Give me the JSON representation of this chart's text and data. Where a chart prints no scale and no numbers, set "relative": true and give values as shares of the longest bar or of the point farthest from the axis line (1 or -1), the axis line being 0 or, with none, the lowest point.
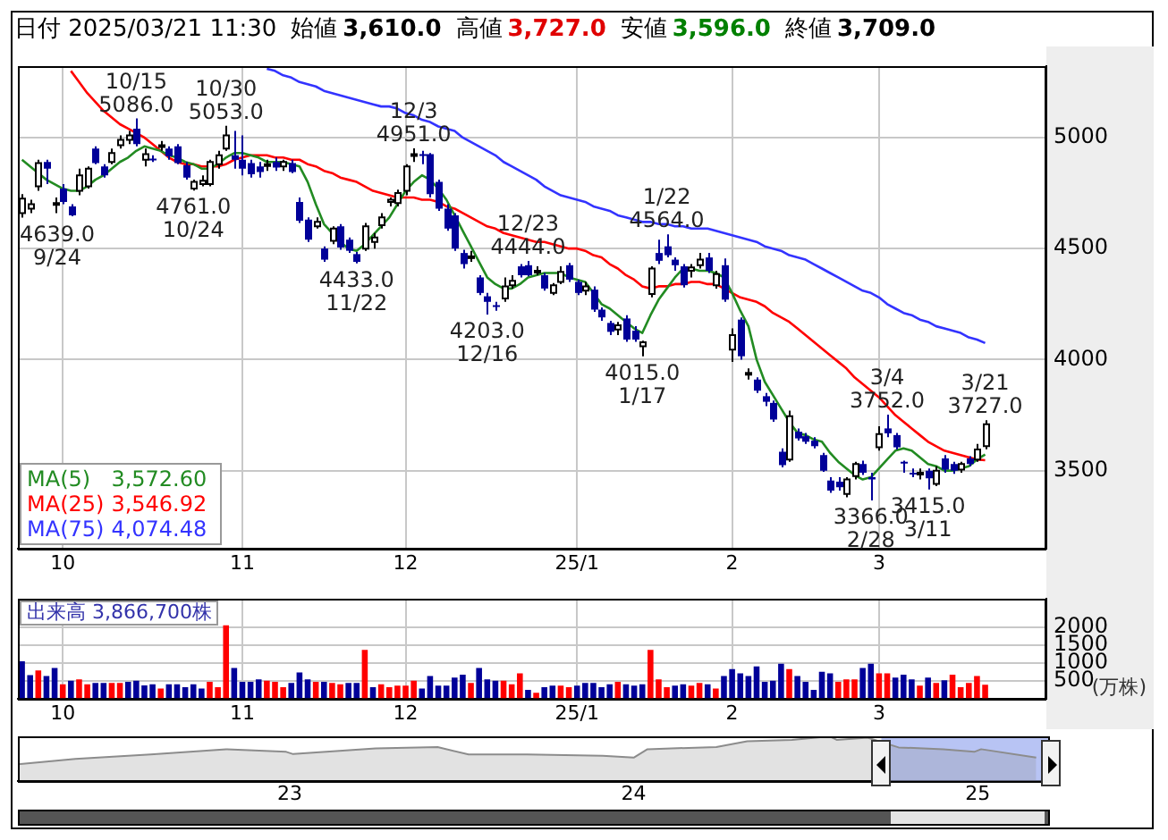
{
  "chart_data": [
    {
      "type": "candlestick",
      "title": "日付 2025/03/21 11:30",
      "annotations": [
        "始値 3,610.0",
        "高値 3,727.0",
        "安値 3,596.0",
        "終値 3,709.0",
        {
          "text": "4639.0\n9/24",
          "y": 4639
        },
        {
          "text": "10/15\n5086.0",
          "y": 5086
        },
        {
          "text": "4761.0\n10/24",
          "y": 4761
        },
        {
          "text": "10/30\n5053.0",
          "y": 5053
        },
        {
          "text": "4433.0\n11/22",
          "y": 4433
        },
        {
          "text": "12/3\n4951.0",
          "y": 4951
        },
        {
          "text": "4203.0\n12/16",
          "y": 4203
        },
        {
          "text": "12/23\n4444.0",
          "y": 4444
        },
        {
          "text": "4015.0\n1/17",
          "y": 4015
        },
        {
          "text": "1/22\n4564.0",
          "y": 4564
        },
        {
          "text": "3366.0\n2/28",
          "y": 3366
        },
        {
          "text": "3/4\n3752.0",
          "y": 3752
        },
        {
          "text": "3415.0\n3/11",
          "y": 3415
        },
        {
          "text": "3/21\n3727.0",
          "y": 3727
        }
      ],
      "categories": [
        null,
        null,
        null,
        null,
        null,
        "10",
        null,
        null,
        null,
        null,
        null,
        null,
        null,
        null,
        null,
        null,
        null,
        null,
        null,
        null,
        null,
        null,
        null,
        null,
        null,
        null,
        null,
        "11",
        null,
        null,
        null,
        null,
        null,
        null,
        null,
        null,
        null,
        null,
        null,
        null,
        null,
        null,
        null,
        null,
        null,
        null,
        null,
        "12",
        null,
        null,
        null,
        null,
        null,
        null,
        null,
        null,
        null,
        null,
        null,
        null,
        null,
        null,
        null,
        null,
        null,
        null,
        null,
        null,
        "25/1",
        null,
        null,
        null,
        null,
        null,
        null,
        null,
        null,
        null,
        null,
        null,
        null,
        null,
        null,
        null,
        null,
        null,
        null,
        "2",
        null,
        null,
        null,
        null,
        null,
        null,
        null,
        null,
        null,
        null,
        null,
        null,
        null,
        null,
        null,
        null,
        null,
        "3",
        null,
        null,
        null,
        null,
        null,
        null,
        null,
        null,
        null,
        null,
        null,
        null,
        null,
        null,
        null,
        null,
        null,
        null,
        null,
        null
      ],
      "ohlc": [
        [
          4660,
          4745,
          4639,
          4725
        ],
        [
          4680,
          4720,
          4660,
          4700
        ],
        [
          4780,
          4900,
          4760,
          4885
        ],
        [
          4890,
          4900,
          4790,
          4860
        ],
        [
          4700,
          4730,
          4660,
          4705
        ],
        [
          4770,
          4790,
          4700,
          4710
        ],
        [
          4690,
          4700,
          4645,
          4650
        ],
        [
          4760,
          4860,
          4740,
          4830
        ],
        [
          4780,
          4870,
          4770,
          4860
        ],
        [
          4950,
          4960,
          4880,
          4885
        ],
        [
          4870,
          4880,
          4820,
          4830
        ],
        [
          4890,
          4950,
          4880,
          4930
        ],
        [
          4965,
          5010,
          4950,
          4990
        ],
        [
          4990,
          5030,
          4970,
          5010
        ],
        [
          5040,
          5086,
          4960,
          4970
        ],
        [
          4900,
          4950,
          4870,
          4925
        ],
        [
          4905,
          4920,
          4890,
          4900
        ],
        [
          4960,
          4985,
          4940,
          4965
        ],
        [
          4950,
          4960,
          4900,
          4915
        ],
        [
          4960,
          4970,
          4880,
          4885
        ],
        [
          4875,
          4890,
          4810,
          4820
        ],
        [
          4770,
          4810,
          4761,
          4800
        ],
        [
          4790,
          4830,
          4780,
          4805
        ],
        [
          4790,
          4900,
          4780,
          4890
        ],
        [
          4880,
          4940,
          4860,
          4920
        ],
        [
          4950,
          5053,
          4940,
          5010
        ],
        [
          4920,
          5030,
          4860,
          4900
        ],
        [
          4900,
          5010,
          4830,
          4860
        ],
        [
          4885,
          4900,
          4820,
          4835
        ],
        [
          4870,
          4890,
          4820,
          4845
        ],
        [
          4875,
          4900,
          4850,
          4880
        ],
        [
          4890,
          4910,
          4850,
          4865
        ],
        [
          4870,
          4900,
          4850,
          4890
        ],
        [
          4885,
          4900,
          4840,
          4845
        ],
        [
          4710,
          4730,
          4615,
          4625
        ],
        [
          4630,
          4640,
          4530,
          4540
        ],
        [
          4600,
          4640,
          4590,
          4620
        ],
        [
          4500,
          4510,
          4440,
          4450
        ],
        [
          4535,
          4600,
          4520,
          4590
        ],
        [
          4600,
          4610,
          4495,
          4505
        ],
        [
          4540,
          4550,
          4480,
          4490
        ],
        [
          4475,
          4485,
          4433,
          4440
        ],
        [
          4500,
          4615,
          4490,
          4600
        ],
        [
          4530,
          4570,
          4500,
          4550
        ],
        [
          4605,
          4660,
          4590,
          4640
        ],
        [
          4710,
          4730,
          4690,
          4720
        ],
        [
          4705,
          4765,
          4690,
          4750
        ],
        [
          4760,
          4880,
          4740,
          4870
        ],
        [
          4920,
          4951,
          4890,
          4925
        ],
        [
          4925,
          4940,
          4880,
          4920
        ],
        [
          4925,
          4930,
          4730,
          4745
        ],
        [
          4800,
          4810,
          4670,
          4680
        ],
        [
          4680,
          4700,
          4580,
          4590
        ],
        [
          4650,
          4660,
          4490,
          4500
        ],
        [
          4480,
          4495,
          4410,
          4430
        ],
        [
          4460,
          4490,
          4440,
          4465
        ],
        [
          4370,
          4380,
          4290,
          4300
        ],
        [
          4285,
          4300,
          4203,
          4260
        ],
        [
          4245,
          4260,
          4220,
          4240
        ],
        [
          4275,
          4370,
          4260,
          4330
        ],
        [
          4335,
          4380,
          4320,
          4355
        ],
        [
          4420,
          4430,
          4370,
          4380
        ],
        [
          4425,
          4444,
          4375,
          4380
        ],
        [
          4395,
          4420,
          4380,
          4400
        ],
        [
          4380,
          4390,
          4310,
          4320
        ],
        [
          4300,
          4345,
          4290,
          4335
        ],
        [
          4350,
          4420,
          4340,
          4395
        ],
        [
          4425,
          4435,
          4350,
          4360
        ],
        [
          4350,
          4360,
          4290,
          4300
        ],
        [
          4310,
          4350,
          4290,
          4330
        ],
        [
          4315,
          4330,
          4215,
          4225
        ],
        [
          4225,
          4235,
          4175,
          4190
        ],
        [
          4165,
          4175,
          4110,
          4125
        ],
        [
          4135,
          4170,
          4110,
          4155
        ],
        [
          4185,
          4200,
          4080,
          4090
        ],
        [
          4130,
          4150,
          4080,
          4090
        ],
        [
          4060,
          4085,
          4015,
          4078
        ],
        [
          4295,
          4420,
          4280,
          4410
        ],
        [
          4480,
          4540,
          4430,
          4445
        ],
        [
          4510,
          4564,
          4460,
          4470
        ],
        [
          4450,
          4460,
          4400,
          4425
        ],
        [
          4420,
          4430,
          4325,
          4335
        ],
        [
          4400,
          4430,
          4370,
          4415
        ],
        [
          4425,
          4480,
          4410,
          4450
        ],
        [
          4460,
          4480,
          4390,
          4400
        ],
        [
          4335,
          4400,
          4320,
          4385
        ],
        [
          4425,
          4455,
          4260,
          4270
        ],
        [
          4045,
          4140,
          3990,
          4110
        ],
        [
          4180,
          4190,
          4000,
          4015
        ],
        [
          3935,
          3960,
          3910,
          3940
        ],
        [
          3910,
          3920,
          3850,
          3860
        ],
        [
          3835,
          3850,
          3790,
          3810
        ],
        [
          3805,
          3815,
          3720,
          3730
        ],
        [
          3585,
          3600,
          3515,
          3525
        ],
        [
          3550,
          3770,
          3540,
          3745
        ],
        [
          3675,
          3690,
          3635,
          3645
        ],
        [
          3655,
          3670,
          3620,
          3630
        ],
        [
          3635,
          3650,
          3600,
          3610
        ],
        [
          3570,
          3580,
          3495,
          3500
        ],
        [
          3455,
          3470,
          3400,
          3410
        ],
        [
          3450,
          3470,
          3410,
          3425
        ],
        [
          3395,
          3470,
          3380,
          3460
        ],
        [
          3475,
          3540,
          3460,
          3530
        ],
        [
          3530,
          3545,
          3480,
          3490
        ],
        [
          3470,
          3490,
          3366,
          3460
        ],
        [
          3605,
          3700,
          3590,
          3665
        ],
        [
          3690,
          3752,
          3650,
          3668
        ],
        [
          3660,
          3670,
          3595,
          3605
        ],
        [
          3540,
          3545,
          3490,
          3535
        ],
        [
          3490,
          3510,
          3470,
          3485
        ],
        [
          3485,
          3510,
          3460,
          3490
        ],
        [
          3500,
          3510,
          3415,
          3465
        ],
        [
          3440,
          3520,
          3430,
          3500
        ],
        [
          3555,
          3570,
          3490,
          3505
        ],
        [
          3530,
          3540,
          3485,
          3500
        ],
        [
          3505,
          3540,
          3490,
          3530
        ],
        [
          3555,
          3565,
          3520,
          3530
        ],
        [
          3550,
          3620,
          3540,
          3595
        ],
        [
          3610,
          3727,
          3596,
          3709
        ],
        null,
        null,
        null,
        null,
        null,
        null,
        null
      ],
      "series": [
        {
          "name": "MA(5) 3,572.60",
          "type": "line",
          "color": "#228b22",
          "values": [
            4900,
            4870,
            4840,
            4810,
            4790,
            4770,
            4760,
            4760,
            4780,
            4810,
            4830,
            4860,
            4890,
            4910,
            4940,
            4960,
            4950,
            4940,
            4920,
            4910,
            4890,
            4880,
            4860,
            4860,
            4880,
            4910,
            4930,
            4930,
            4920,
            4910,
            4890,
            4890,
            4890,
            4880,
            4870,
            4800,
            4700,
            4610,
            4570,
            4530,
            4500,
            4490,
            4520,
            4560,
            4600,
            4640,
            4700,
            4760,
            4800,
            4830,
            4810,
            4770,
            4720,
            4650,
            4580,
            4510,
            4440,
            4370,
            4340,
            4320,
            4320,
            4340,
            4370,
            4380,
            4390,
            4390,
            4390,
            4370,
            4360,
            4350,
            4300,
            4250,
            4230,
            4200,
            4170,
            4140,
            4120,
            4200,
            4270,
            4320,
            4370,
            4410,
            4410,
            4400,
            4400,
            4390,
            4370,
            4300,
            4220,
            4150,
            4000,
            3900,
            3840,
            3780,
            3720,
            3670,
            3660,
            3640,
            3630,
            3580,
            3540,
            3510,
            3480,
            3460,
            3470,
            3510,
            3550,
            3590,
            3600,
            3590,
            3560,
            3530,
            3520,
            3500,
            3500,
            3510,
            3520,
            3550,
            3572.6,
            null,
            null,
            null,
            null,
            null,
            null,
            null
          ]
        },
        {
          "name": "MA(25) 3,546.92",
          "type": "line",
          "color": "#ff0000",
          "values": [
            null,
            null,
            null,
            null,
            null,
            null,
            5300,
            5250,
            5200,
            5160,
            5120,
            5090,
            5060,
            5040,
            5020,
            5000,
            4970,
            4940,
            4910,
            4890,
            4880,
            4880,
            4870,
            4870,
            4870,
            4880,
            4900,
            4910,
            4920,
            4920,
            4920,
            4910,
            4910,
            4900,
            4900,
            4880,
            4870,
            4850,
            4840,
            4820,
            4810,
            4800,
            4780,
            4760,
            4750,
            4740,
            4730,
            4730,
            4730,
            4720,
            4720,
            4710,
            4690,
            4680,
            4660,
            4640,
            4620,
            4600,
            4590,
            4570,
            4560,
            4550,
            4540,
            4530,
            4530,
            4520,
            4510,
            4500,
            4500,
            4490,
            4470,
            4460,
            4430,
            4410,
            4380,
            4360,
            4330,
            4320,
            4330,
            4330,
            4340,
            4340,
            4350,
            4350,
            4340,
            4340,
            4320,
            4300,
            4280,
            4270,
            4260,
            4240,
            4210,
            4190,
            4170,
            4140,
            4110,
            4080,
            4050,
            4020,
            3990,
            3960,
            3920,
            3890,
            3860,
            3830,
            3790,
            3750,
            3720,
            3690,
            3660,
            3630,
            3610,
            3590,
            3580,
            3570,
            3560,
            3550,
            3546.92,
            null,
            null,
            null,
            null,
            null,
            null,
            null
          ]
        },
        {
          "name": "MA(75) 4,074.48",
          "type": "line",
          "color": "#3333ff",
          "values": [
            null,
            null,
            null,
            null,
            null,
            null,
            null,
            null,
            null,
            null,
            null,
            null,
            null,
            null,
            null,
            null,
            null,
            null,
            null,
            null,
            null,
            null,
            null,
            null,
            null,
            null,
            null,
            null,
            null,
            null,
            5310,
            5300,
            5280,
            5270,
            5250,
            5240,
            5230,
            5210,
            5200,
            5190,
            5180,
            5170,
            5160,
            5150,
            5140,
            5140,
            5130,
            5110,
            5100,
            5080,
            5070,
            5050,
            5040,
            5030,
            5000,
            4980,
            4960,
            4940,
            4920,
            4890,
            4870,
            4850,
            4830,
            4810,
            4780,
            4760,
            4740,
            4730,
            4720,
            4710,
            4690,
            4680,
            4670,
            4650,
            4640,
            4630,
            4620,
            4620,
            4610,
            4610,
            4600,
            4600,
            4590,
            4590,
            4590,
            4580,
            4570,
            4560,
            4550,
            4540,
            4530,
            4510,
            4500,
            4490,
            4470,
            4460,
            4450,
            4430,
            4410,
            4390,
            4370,
            4350,
            4330,
            4310,
            4300,
            4280,
            4250,
            4230,
            4210,
            4200,
            4180,
            4170,
            4150,
            4140,
            4130,
            4120,
            4100,
            4090,
            4074.48,
            null,
            null,
            null,
            null,
            null,
            null,
            null
          ]
        }
      ],
      "ylim": [
        3150,
        5320
      ],
      "yticks": [
        3500,
        4000,
        4500,
        5000
      ],
      "grid": true,
      "legend": "bottom left"
    },
    {
      "type": "bar",
      "annotations": [
        "出来高 3,866,700株"
      ],
      "ylabel": "(万株)",
      "categories": [
        null,
        null,
        null,
        null,
        null,
        "10",
        null,
        null,
        null,
        null,
        null,
        null,
        null,
        null,
        null,
        null,
        null,
        null,
        null,
        null,
        null,
        null,
        null,
        null,
        null,
        null,
        null,
        "11",
        null,
        null,
        null,
        null,
        null,
        null,
        null,
        null,
        null,
        null,
        null,
        null,
        null,
        null,
        null,
        null,
        null,
        null,
        null,
        "12",
        null,
        null,
        null,
        null,
        null,
        null,
        null,
        null,
        null,
        null,
        null,
        null,
        null,
        null,
        null,
        null,
        null,
        null,
        null,
        null,
        "25/1",
        null,
        null,
        null,
        null,
        null,
        null,
        null,
        null,
        null,
        null,
        null,
        null,
        null,
        null,
        null,
        null,
        null,
        null,
        "2",
        null,
        null,
        null,
        null,
        null,
        null,
        null,
        null,
        null,
        null,
        null,
        null,
        null,
        null,
        null,
        null,
        null,
        "3",
        null,
        null,
        null,
        null,
        null,
        null,
        null,
        null,
        null,
        null,
        null,
        null,
        null,
        null,
        null,
        null,
        null,
        null,
        null,
        null
      ],
      "values": [
        1050,
        660,
        790,
        630,
        860,
        400,
        500,
        540,
        400,
        440,
        440,
        440,
        440,
        470,
        500,
        370,
        400,
        280,
        400,
        400,
        320,
        400,
        280,
        470,
        320,
        2060,
        860,
        470,
        470,
        540,
        500,
        470,
        320,
        440,
        730,
        540,
        470,
        470,
        440,
        400,
        440,
        440,
        1370,
        320,
        400,
        320,
        360,
        360,
        500,
        280,
        630,
        360,
        360,
        590,
        670,
        440,
        860,
        540,
        500,
        500,
        400,
        710,
        240,
        160,
        320,
        360,
        360,
        320,
        360,
        440,
        440,
        320,
        400,
        470,
        400,
        360,
        400,
        1370,
        540,
        320,
        360,
        400,
        360,
        440,
        400,
        280,
        630,
        830,
        710,
        630,
        900,
        470,
        500,
        980,
        830,
        630,
        470,
        240,
        750,
        710,
        470,
        540,
        540,
        860,
        980,
        710,
        710,
        590,
        670,
        540,
        360,
        590,
        440,
        510,
        670,
        320,
        440,
        630,
        387,
        null,
        null,
        null,
        null,
        null,
        null,
        null
      ],
      "colors": [
        "#000099",
        "#000099",
        "#ff0000",
        "#000099",
        "#000099",
        "#ff0000",
        "#000099",
        "#ff0000",
        "#ff0000",
        "#000099",
        "#000099",
        "#ff0000",
        "#ff0000",
        "#000099",
        "#000099",
        "#000099",
        "#000099",
        "#ff0000",
        "#000099",
        "#000099",
        "#000099",
        "#000099",
        "#000099",
        "#ff0000",
        "#ff0000",
        "#ff0000",
        "#000099",
        "#000099",
        "#000099",
        "#000099",
        "#ff0000",
        "#ff0000",
        "#ff0000",
        "#000099",
        "#000099",
        "#000099",
        "#ff0000",
        "#000099",
        "#ff0000",
        "#ff0000",
        "#000099",
        "#000099",
        "#ff0000",
        "#000099",
        "#ff0000",
        "#ff0000",
        "#ff0000",
        "#ff0000",
        "#ff0000",
        "#000099",
        "#000099",
        "#000099",
        "#000099",
        "#000099",
        "#000099",
        "#ff0000",
        "#000099",
        "#000099",
        "#000099",
        "#ff0000",
        "#ff0000",
        "#ff0000",
        "#000099",
        "#ff0000",
        "#000099",
        "#000099",
        "#ff0000",
        "#ff0000",
        "#000099",
        "#000099",
        "#000099",
        "#000099",
        "#000099",
        "#ff0000",
        "#000099",
        "#000099",
        "#000099",
        "#ff0000",
        "#ff0000",
        "#ff0000",
        "#000099",
        "#000099",
        "#ff0000",
        "#ff0000",
        "#000099",
        "#ff0000",
        "#000099",
        "#000099",
        "#000099",
        "#000099",
        "#000099",
        "#000099",
        "#000099",
        "#000099",
        "#ff0000",
        "#000099",
        "#000099",
        "#000099",
        "#000099",
        "#000099",
        "#ff0000",
        "#ff0000",
        "#ff0000",
        "#000099",
        "#000099",
        "#ff0000",
        "#ff0000",
        "#000099",
        "#000099",
        "#000099",
        "#ff0000",
        "#000099",
        "#ff0000",
        "#000099",
        "#ff0000",
        "#ff0000",
        "#ff0000",
        "#ff0000",
        "#ff0000",
        null,
        null,
        null,
        null,
        null,
        null,
        null
      ],
      "ylim": [
        0,
        2800
      ],
      "yticks": [
        500,
        1000,
        1500,
        2000
      ],
      "grid": true
    },
    {
      "type": "area",
      "relative": true,
      "color": "#8c8c8c",
      "x": [
        2022.21,
        2022.377,
        2022.596,
        2022.815,
        2022.99,
        2023.01,
        2023.25,
        2023.43,
        2023.52,
        2023.69,
        2023.91,
        2024.0,
        2024.04,
        2024.24,
        2024.33,
        2024.46,
        2024.57,
        2024.59,
        2024.68,
        2024.77,
        2024.9,
        2024.99,
        2025.01,
        2025.17
      ],
      "values": [
        0.37,
        0.49,
        0.59,
        0.71,
        0.65,
        0.6,
        0.73,
        0.76,
        0.59,
        0.59,
        0.56,
        0.52,
        0.71,
        0.76,
        0.89,
        0.92,
        1,
        0.92,
        0.97,
        0.75,
        0.71,
        0.65,
        0.71,
        0.52
      ],
      "xlim": [
        2022.21,
        2025.21
      ],
      "xticks": [
        {
          "value": 2023,
          "label": "23"
        },
        {
          "value": 2024,
          "label": "24"
        },
        {
          "value": 2025,
          "label": "25"
        }
      ],
      "bands": [
        {
          "axis": "x",
          "from": 2024.72,
          "to": 2025.21,
          "color": "#b8c4f4"
        }
      ]
    }
  ]
}
